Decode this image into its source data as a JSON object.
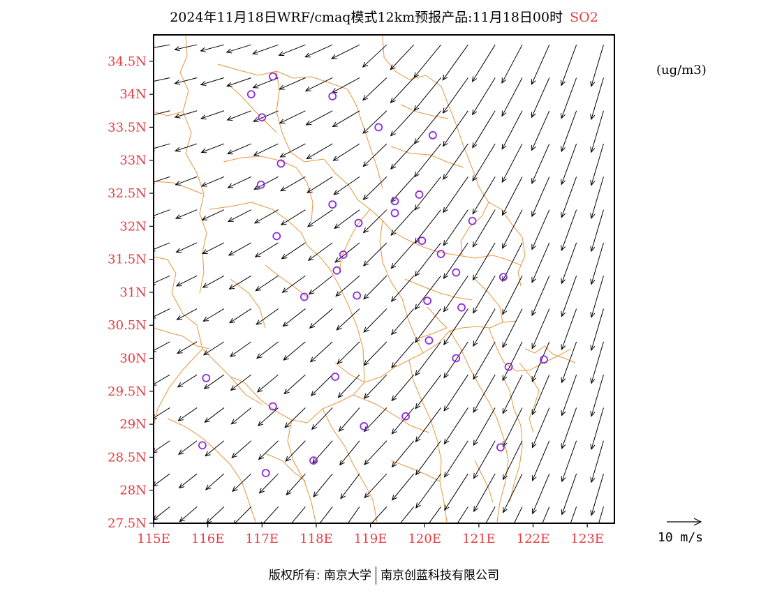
{
  "title": {
    "text": "2024年11月18日WRF/cmaq模式12km预报产品:11月18日00时",
    "pollutant": "SO2"
  },
  "unit": "(ug/m3)",
  "axes": {
    "lat_labels": [
      "34.5N",
      "34N",
      "33.5N",
      "33N",
      "32.5N",
      "32N",
      "31.5N",
      "31N",
      "30.5N",
      "30N",
      "29.5N",
      "29N",
      "28.5N",
      "28N",
      "27.5N"
    ],
    "lon_labels": [
      "115E",
      "116E",
      "117E",
      "118E",
      "119E",
      "120E",
      "121E",
      "122E",
      "123E"
    ],
    "lon_range": [
      115,
      123.5
    ],
    "lat_range": [
      27.5,
      34.9
    ]
  },
  "wind_scale": {
    "label": "10  m/s",
    "speed_ms": 10
  },
  "stations": [
    {
      "lon": 116.8,
      "lat": 34.0
    },
    {
      "lon": 117.2,
      "lat": 34.27
    },
    {
      "lon": 118.3,
      "lat": 33.97
    },
    {
      "lon": 117.0,
      "lat": 33.65
    },
    {
      "lon": 119.15,
      "lat": 33.5
    },
    {
      "lon": 120.15,
      "lat": 33.38
    },
    {
      "lon": 117.35,
      "lat": 32.95
    },
    {
      "lon": 116.98,
      "lat": 32.63
    },
    {
      "lon": 119.9,
      "lat": 32.48
    },
    {
      "lon": 119.45,
      "lat": 32.38
    },
    {
      "lon": 118.3,
      "lat": 32.33
    },
    {
      "lon": 119.45,
      "lat": 32.2
    },
    {
      "lon": 118.78,
      "lat": 32.05
    },
    {
      "lon": 120.88,
      "lat": 32.08
    },
    {
      "lon": 117.27,
      "lat": 31.85
    },
    {
      "lon": 119.95,
      "lat": 31.78
    },
    {
      "lon": 118.5,
      "lat": 31.57
    },
    {
      "lon": 120.3,
      "lat": 31.58
    },
    {
      "lon": 118.38,
      "lat": 31.33
    },
    {
      "lon": 120.58,
      "lat": 31.3
    },
    {
      "lon": 121.45,
      "lat": 31.23
    },
    {
      "lon": 117.78,
      "lat": 30.93
    },
    {
      "lon": 118.75,
      "lat": 30.95
    },
    {
      "lon": 120.05,
      "lat": 30.87
    },
    {
      "lon": 120.68,
      "lat": 30.77
    },
    {
      "lon": 120.08,
      "lat": 30.27
    },
    {
      "lon": 120.58,
      "lat": 30.0
    },
    {
      "lon": 122.2,
      "lat": 29.98
    },
    {
      "lon": 121.55,
      "lat": 29.87
    },
    {
      "lon": 118.35,
      "lat": 29.72
    },
    {
      "lon": 115.97,
      "lat": 29.7
    },
    {
      "lon": 117.2,
      "lat": 29.27
    },
    {
      "lon": 119.65,
      "lat": 29.12
    },
    {
      "lon": 118.88,
      "lat": 28.97
    },
    {
      "lon": 115.9,
      "lat": 28.68
    },
    {
      "lon": 121.4,
      "lat": 28.65
    },
    {
      "lon": 117.95,
      "lat": 28.45
    },
    {
      "lon": 117.07,
      "lat": 28.26
    }
  ],
  "footer": {
    "left": "版权所有: 南京大学",
    "right": "南京创蓝科技有限公司"
  },
  "colors": {
    "label_red": "#e8393f",
    "boundary_orange": "#e8943a",
    "station_purple": "#8a2be2",
    "frame": "#000000"
  }
}
